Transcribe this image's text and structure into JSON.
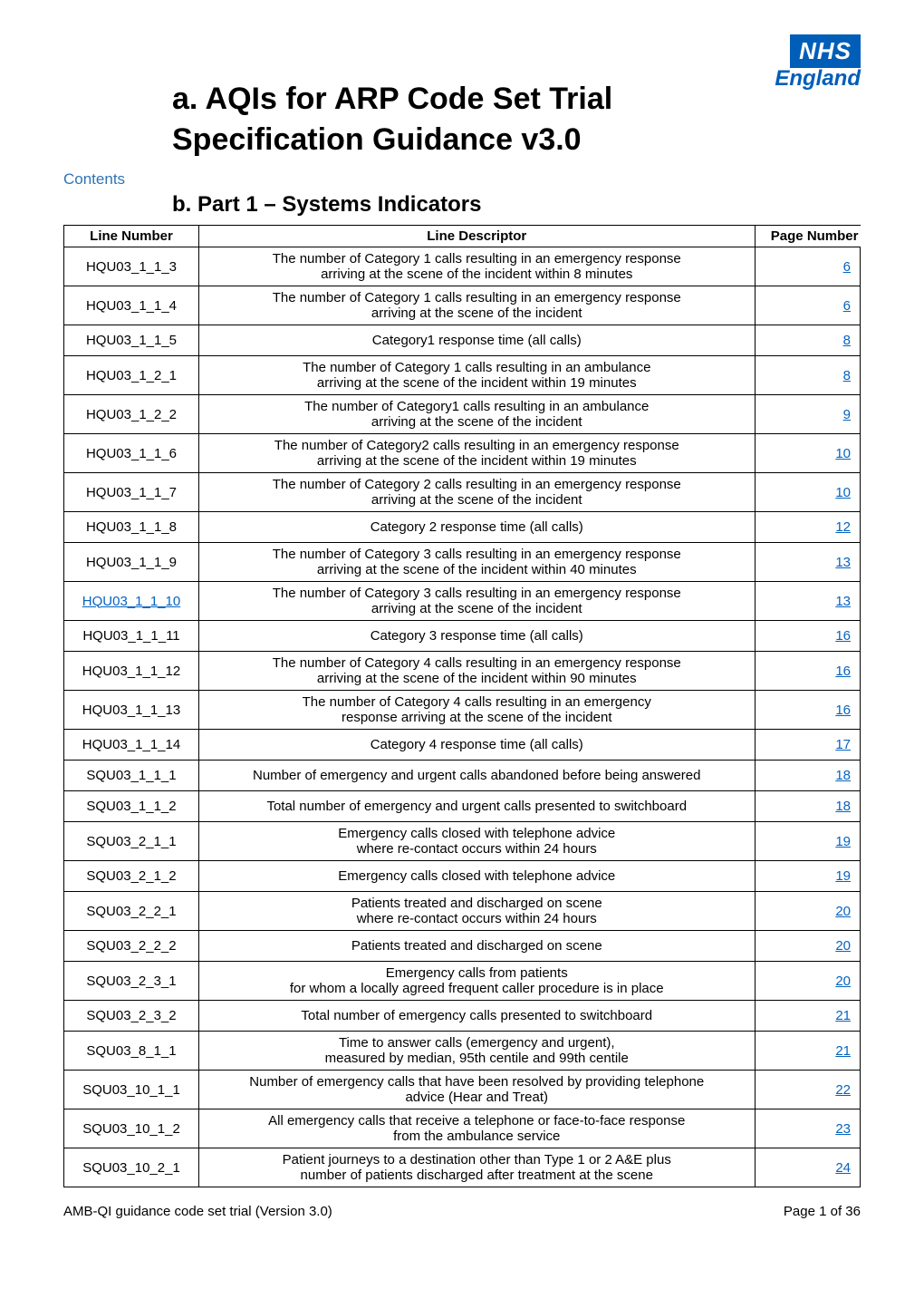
{
  "logo": {
    "nhs": "NHS",
    "england": "England"
  },
  "title_a": "a.   AQIs for ARP Code Set Trial",
  "title_line2": "Specification Guidance v3.0",
  "contents_label": "Contents",
  "part_b": "b. Part 1 – Systems Indicators",
  "headers": {
    "line_number": "Line Number",
    "line_descriptor": "Line Descriptor",
    "page_number": "Page Number"
  },
  "rows": [
    {
      "line": "HQU03_1_1_3",
      "link": false,
      "desc": "The number of Category 1 calls resulting in an emergency response\narriving at the scene of the incident within 8 minutes",
      "page": "6"
    },
    {
      "line": "HQU03_1_1_4",
      "link": false,
      "desc": "The number of Category 1 calls resulting in an emergency response\narriving at the scene of the incident",
      "page": "6"
    },
    {
      "line": "HQU03_1_1_5",
      "link": false,
      "desc": "Category1 response time (all calls)",
      "page": "8"
    },
    {
      "line": "HQU03_1_2_1",
      "link": false,
      "desc": "The number of Category 1 calls resulting in an ambulance\narriving at the scene of the incident within 19 minutes",
      "page": "8"
    },
    {
      "line": "HQU03_1_2_2",
      "link": false,
      "desc": "The number of Category1 calls resulting in an ambulance\narriving at the scene of the incident",
      "page": "9"
    },
    {
      "line": "HQU03_1_1_6",
      "link": false,
      "desc": "The number of Category2 calls resulting in an emergency response\narriving at the scene of the incident within 19 minutes",
      "page": "10"
    },
    {
      "line": "HQU03_1_1_7",
      "link": false,
      "desc": "The number of Category 2 calls resulting in an emergency response\narriving at the scene of the incident",
      "page": "10"
    },
    {
      "line": "HQU03_1_1_8",
      "link": false,
      "desc": "Category 2 response time (all calls)",
      "page": "12"
    },
    {
      "line": "HQU03_1_1_9",
      "link": false,
      "desc": "The number of Category 3 calls resulting in an emergency response\narriving at the scene of the incident within 40 minutes",
      "page": "13"
    },
    {
      "line": "HQU03_1_1_10",
      "link": true,
      "desc": "The number of Category 3 calls resulting in an emergency response\narriving at the scene of the incident",
      "page": "13"
    },
    {
      "line": "HQU03_1_1_11",
      "link": false,
      "desc": "Category 3 response time (all calls)",
      "page": "16"
    },
    {
      "line": "HQU03_1_1_12",
      "link": false,
      "desc": "The number of Category 4 calls resulting in an emergency response\narriving at the scene of the incident within 90 minutes",
      "page": "16"
    },
    {
      "line": "HQU03_1_1_13",
      "link": false,
      "desc": "The number of Category 4 calls resulting in an emergency\nresponse arriving at the scene of the incident",
      "page": "16"
    },
    {
      "line": "HQU03_1_1_14",
      "link": false,
      "desc": "Category 4 response time (all calls)",
      "page": "17"
    },
    {
      "line": "SQU03_1_1_1",
      "link": false,
      "desc": "Number of emergency and urgent calls abandoned before being answered",
      "page": "18"
    },
    {
      "line": "SQU03_1_1_2",
      "link": false,
      "desc": "Total number of emergency and urgent calls presented to switchboard",
      "page": "18"
    },
    {
      "line": "SQU03_2_1_1",
      "link": false,
      "desc": "Emergency calls closed with telephone advice\nwhere re-contact occurs within 24 hours",
      "page": "19"
    },
    {
      "line": "SQU03_2_1_2",
      "link": false,
      "desc": "Emergency calls closed with telephone advice",
      "page": "19"
    },
    {
      "line": "SQU03_2_2_1",
      "link": false,
      "desc": "Patients treated and discharged on scene\nwhere re-contact occurs within 24 hours",
      "page": "20"
    },
    {
      "line": "SQU03_2_2_2",
      "link": false,
      "desc": "Patients treated and discharged on scene",
      "page": "20"
    },
    {
      "line": "SQU03_2_3_1",
      "link": false,
      "desc": "Emergency calls from patients\nfor whom a locally agreed frequent caller procedure is in place",
      "page": "20"
    },
    {
      "line": "SQU03_2_3_2",
      "link": false,
      "desc": "Total number of emergency calls presented to switchboard",
      "page": "21"
    },
    {
      "line": "SQU03_8_1_1",
      "link": false,
      "desc": "Time to answer calls (emergency and urgent),\nmeasured by median, 95th centile and 99th centile",
      "page": "21"
    },
    {
      "line": "SQU03_10_1_1",
      "link": false,
      "desc": "Number of emergency calls that have been resolved by providing telephone\nadvice (Hear and Treat)",
      "page": "22"
    },
    {
      "line": "SQU03_10_1_2",
      "link": false,
      "desc": "All emergency calls that receive a telephone or face-to-face response\nfrom the ambulance service",
      "page": "23"
    },
    {
      "line": "SQU03_10_2_1",
      "link": false,
      "desc": "Patient journeys to a destination other than Type 1 or 2 A&E plus\nnumber of patients discharged after treatment at the scene",
      "page": "24"
    }
  ],
  "footer": {
    "left": "AMB-QI guidance code set trial (Version 3.0)",
    "right": "Page 1 of 36"
  }
}
